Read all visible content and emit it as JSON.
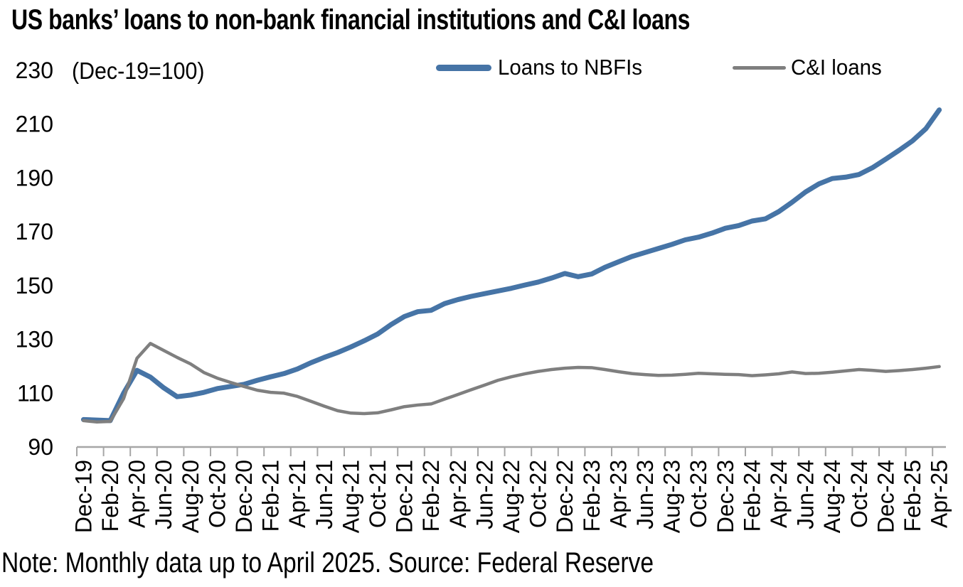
{
  "title": "US banks’ loans to non-bank financial institutions and C&I loans",
  "note": "Note: Monthly data up to April 2025. Source: Federal Reserve",
  "legend": [
    {
      "label": "Loans to NBFIs",
      "color": "#4674A6"
    },
    {
      "label": "C&I loans",
      "color": "#7F7F7F"
    }
  ],
  "y_axis": {
    "unit_note": "(Dec-19=100)"
  },
  "colors": {
    "axis": "#A6A6A6",
    "text": "#000000",
    "nbfi_line": "#4674A6",
    "ci_line": "#7F7F7F"
  },
  "chart_data": {
    "type": "line",
    "title": "US banks’ loans to non-bank financial institutions and C&I loans",
    "unit_note": "(Dec-19=100)",
    "grid": false,
    "legend_position": "top",
    "ylim": [
      90,
      230
    ],
    "y_ticks": [
      230,
      210,
      190,
      170,
      150,
      130,
      110,
      90
    ],
    "x_tick_labels": [
      "Dec-19",
      "Feb-20",
      "Apr-20",
      "Jun-20",
      "Aug-20",
      "Oct-20",
      "Dec-20",
      "Feb-21",
      "Apr-21",
      "Jun-21",
      "Aug-21",
      "Oct-21",
      "Dec-21",
      "Feb-22",
      "Apr-22",
      "Jun-22",
      "Aug-22",
      "Oct-22",
      "Dec-22",
      "Feb-23",
      "Apr-23",
      "Jun-23",
      "Aug-23",
      "Oct-23",
      "Dec-23",
      "Feb-24",
      "Apr-24",
      "Jun-24",
      "Aug-24",
      "Oct-24",
      "Dec-24",
      "Feb-25",
      "Apr-25"
    ],
    "x": [
      "Dec-19",
      "Jan-20",
      "Feb-20",
      "Mar-20",
      "Apr-20",
      "May-20",
      "Jun-20",
      "Jul-20",
      "Aug-20",
      "Sep-20",
      "Oct-20",
      "Nov-20",
      "Dec-20",
      "Jan-21",
      "Feb-21",
      "Mar-21",
      "Apr-21",
      "May-21",
      "Jun-21",
      "Jul-21",
      "Aug-21",
      "Sep-21",
      "Oct-21",
      "Nov-21",
      "Dec-21",
      "Jan-22",
      "Feb-22",
      "Mar-22",
      "Apr-22",
      "May-22",
      "Jun-22",
      "Jul-22",
      "Aug-22",
      "Sep-22",
      "Oct-22",
      "Nov-22",
      "Dec-22",
      "Jan-23",
      "Feb-23",
      "Mar-23",
      "Apr-23",
      "May-23",
      "Jun-23",
      "Jul-23",
      "Aug-23",
      "Sep-23",
      "Oct-23",
      "Nov-23",
      "Dec-23",
      "Jan-24",
      "Feb-24",
      "Mar-24",
      "Apr-24",
      "May-24",
      "Jun-24",
      "Jul-24",
      "Aug-24",
      "Sep-24",
      "Oct-24",
      "Nov-24",
      "Dec-24",
      "Jan-25",
      "Feb-25",
      "Mar-25",
      "Apr-25"
    ],
    "series": [
      {
        "name": "Loans to NBFIs",
        "color": "#4674A6",
        "values": [
          100.2,
          100.0,
          99.8,
          110.0,
          118.5,
          116.0,
          112.0,
          108.7,
          109.3,
          110.3,
          111.7,
          112.5,
          113.3,
          114.8,
          116.1,
          117.3,
          119.0,
          121.3,
          123.3,
          125.1,
          127.2,
          129.5,
          132.0,
          135.5,
          138.5,
          140.3,
          140.8,
          143.3,
          144.8,
          146.0,
          147.0,
          148.0,
          149.0,
          150.2,
          151.3,
          152.8,
          154.5,
          153.3,
          154.3,
          156.8,
          158.8,
          160.8,
          162.3,
          163.8,
          165.3,
          167.0,
          168.0,
          169.5,
          171.3,
          172.3,
          174.0,
          174.8,
          177.5,
          181.0,
          184.8,
          187.8,
          189.8,
          190.3,
          191.3,
          193.8,
          197.0,
          200.3,
          203.8,
          208.3,
          215.3
        ]
      },
      {
        "name": "C&I loans",
        "color": "#7F7F7F",
        "values": [
          99.8,
          99.3,
          99.5,
          108.0,
          123.0,
          128.5,
          125.9,
          123.3,
          120.9,
          117.7,
          115.6,
          114.0,
          112.5,
          111.1,
          110.3,
          110.0,
          108.8,
          107.0,
          105.2,
          103.5,
          102.6,
          102.4,
          102.7,
          103.8,
          105.0,
          105.6,
          106.0,
          107.8,
          109.5,
          111.3,
          113.0,
          114.8,
          116.1,
          117.2,
          118.1,
          118.8,
          119.3,
          119.6,
          119.5,
          118.8,
          118.0,
          117.3,
          116.9,
          116.6,
          116.7,
          117.0,
          117.4,
          117.2,
          117.0,
          116.9,
          116.5,
          116.8,
          117.2,
          117.9,
          117.3,
          117.4,
          117.8,
          118.3,
          118.8,
          118.5,
          118.1,
          118.4,
          118.8,
          119.3,
          119.9
        ]
      }
    ]
  }
}
